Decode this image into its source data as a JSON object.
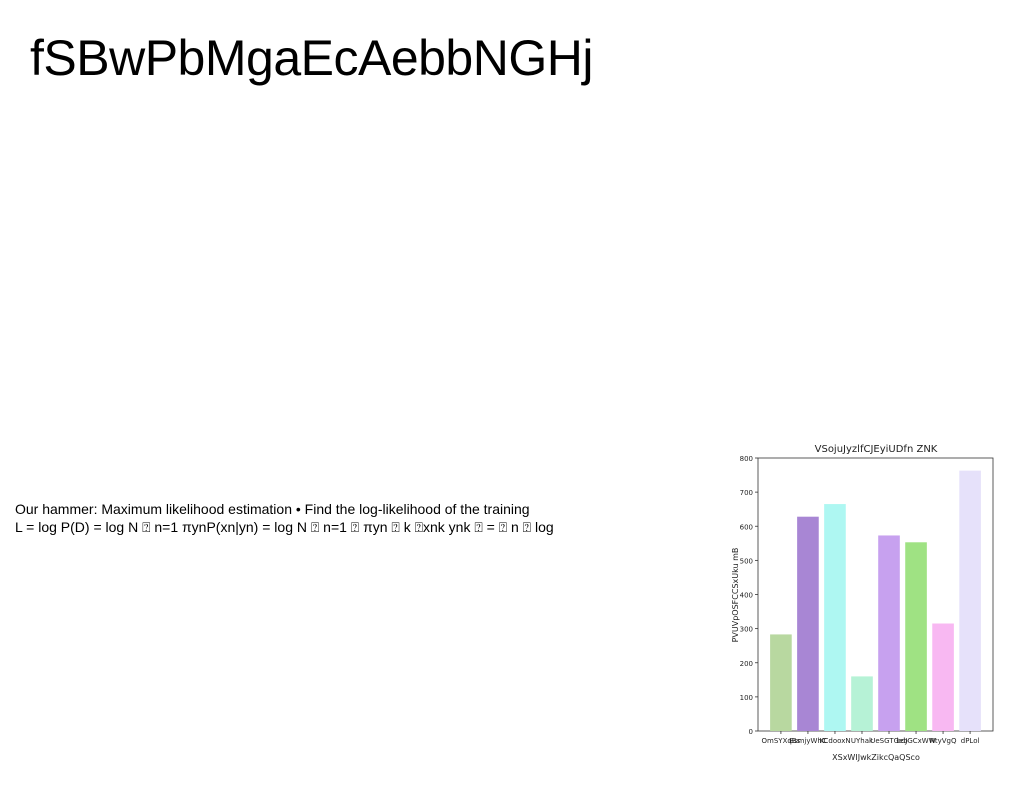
{
  "slide": {
    "title": "fSBwPbMgaEcAebbNGHj",
    "lines": [
      "Our hammer: Maximum likelihood estimation • Find the log-likelihood of the training",
      "L = log P(D) = log N ⍰ n=1 πynP(xn|yn) = log N ⍰ n=1 ⍰ πyn ⍰ k ⍰xnk ynk ⍰ = ⍰ n ⍰ log"
    ]
  },
  "chart_data": {
    "type": "bar",
    "title": "VSojuJyzlfCJEyiUDfn ZNK",
    "xlabel": "XSxWIJwkZikcQaQSco",
    "ylabel": "PVUVpOSFCCSxUku mB",
    "ylim": [
      0,
      800
    ],
    "yticks": [
      0,
      100,
      200,
      300,
      400,
      500,
      600,
      700,
      800
    ],
    "grid": false,
    "categories": [
      "OmSYXqBs",
      "BsmjyWhC",
      "KCdooxN",
      "UYhak",
      "UeSGTGeb",
      "bdJGCxWW",
      "NtyVgQ",
      "dPLol"
    ],
    "values": [
      283,
      628,
      665,
      160,
      573,
      553,
      315,
      763
    ],
    "colors": [
      "#b8d8a0",
      "#a886d4",
      "#aef7f2",
      "#b6f2d6",
      "#c7a1ef",
      "#9fe283",
      "#f8b8f2",
      "#e6e1fa"
    ]
  }
}
